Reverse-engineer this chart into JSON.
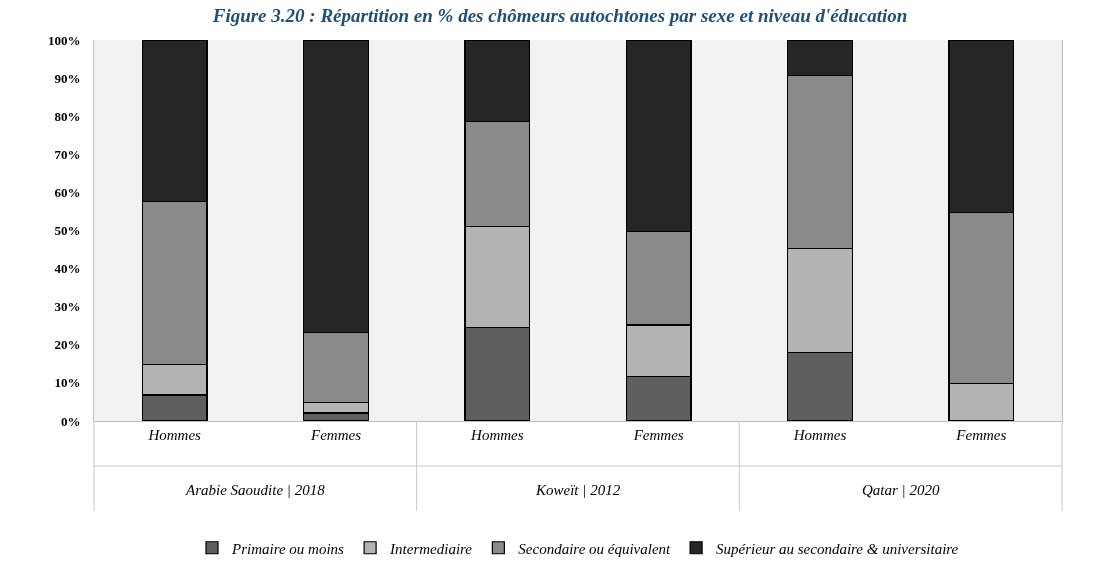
{
  "chart_data": {
    "type": "bar",
    "title": "Figure 3.20 : Répartition en % des chômeurs autochtones par sexe et niveau d'éducation",
    "categories": [
      "Hommes",
      "Femmes",
      "Hommes",
      "Femmes",
      "Hommes",
      "Femmes"
    ],
    "annotations": [
      "Arabie Saoudite | 2018",
      "Koweït | 2012",
      "Qatar | 2020"
    ],
    "stacked": true,
    "series": [
      {
        "name": "Primaire ou moins",
        "color": "#5f5f5f",
        "values": [
          6.8,
          2.1,
          24.6,
          11.6,
          18.0,
          0
        ]
      },
      {
        "name": "Intermediaire",
        "color": "#b3b3b3",
        "values": [
          8.0,
          2.8,
          26.5,
          13.6,
          27.3,
          9.8
        ]
      },
      {
        "name": "Secondaire ou équivalent",
        "color": "#8a8a8a",
        "values": [
          42.8,
          18.4,
          27.6,
          24.6,
          45.4,
          44.9
        ]
      },
      {
        "name": "Supérieur au secondaire & universitaire",
        "color": "#262626",
        "values": [
          42.4,
          76.7,
          21.3,
          50.2,
          9.3,
          45.3
        ]
      }
    ],
    "ylim": [
      0,
      100
    ],
    "yticks": [
      {
        "value": 0,
        "label": "0%"
      },
      {
        "value": 10,
        "label": "10%"
      },
      {
        "value": 20,
        "label": "20%"
      },
      {
        "value": 30,
        "label": "30%"
      },
      {
        "value": 40,
        "label": "40%"
      },
      {
        "value": 50,
        "label": "50%"
      },
      {
        "value": 60,
        "label": "60%"
      },
      {
        "value": 70,
        "label": "70%"
      },
      {
        "value": 80,
        "label": "80%"
      },
      {
        "value": 90,
        "label": "90%"
      },
      {
        "value": 100,
        "label": "100%"
      }
    ],
    "legend": "bottom"
  }
}
